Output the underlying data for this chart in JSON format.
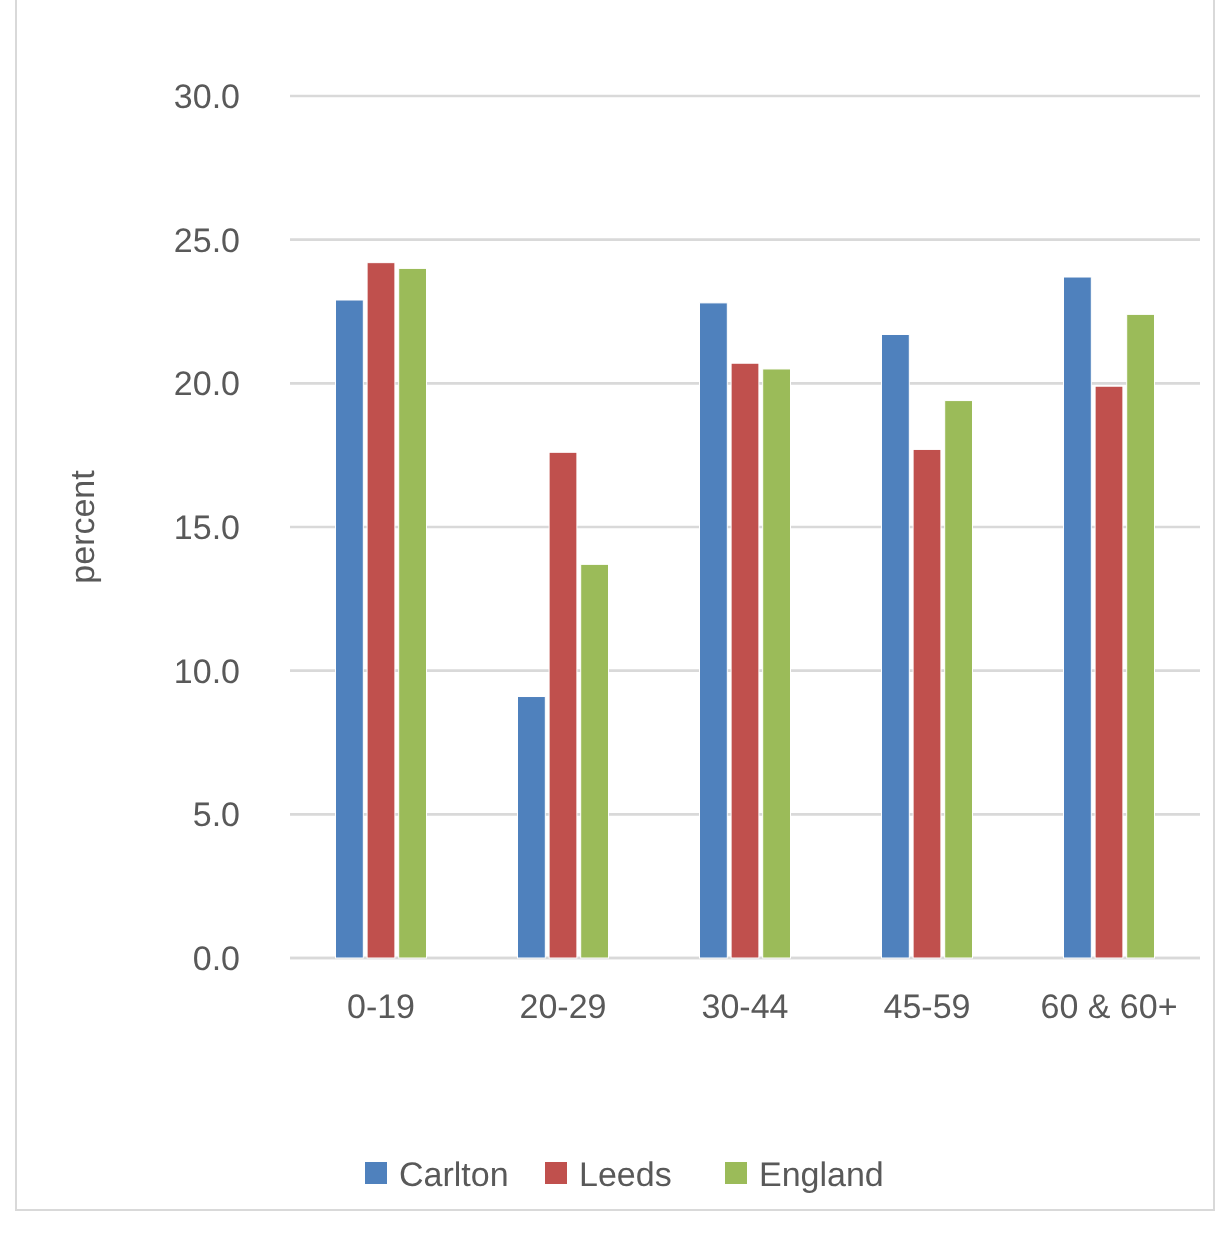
{
  "chart_data": {
    "type": "bar",
    "ylabel": "percent",
    "categories": [
      "0-19",
      "20-29",
      "30-44",
      "45-59",
      "60 & 60+"
    ],
    "series": [
      {
        "name": "Carlton",
        "color": "#4f81bd",
        "values": [
          22.9,
          9.1,
          22.8,
          21.7,
          23.7
        ]
      },
      {
        "name": "Leeds",
        "color": "#c0504d",
        "values": [
          24.2,
          17.6,
          20.7,
          17.7,
          19.9
        ]
      },
      {
        "name": "England",
        "color": "#9bbb59",
        "values": [
          24.0,
          13.7,
          20.5,
          19.4,
          22.4
        ]
      }
    ],
    "ylim": [
      0,
      30
    ],
    "yticks": [
      {
        "value": 0,
        "label": "0.0"
      },
      {
        "value": 5,
        "label": "5.0"
      },
      {
        "value": 10,
        "label": "10.0"
      },
      {
        "value": 15,
        "label": "15.0"
      },
      {
        "value": 20,
        "label": "20.0"
      },
      {
        "value": 25,
        "label": "25.0"
      },
      {
        "value": 30,
        "label": "30.0"
      }
    ],
    "grid": "y",
    "legend": "bottom"
  }
}
